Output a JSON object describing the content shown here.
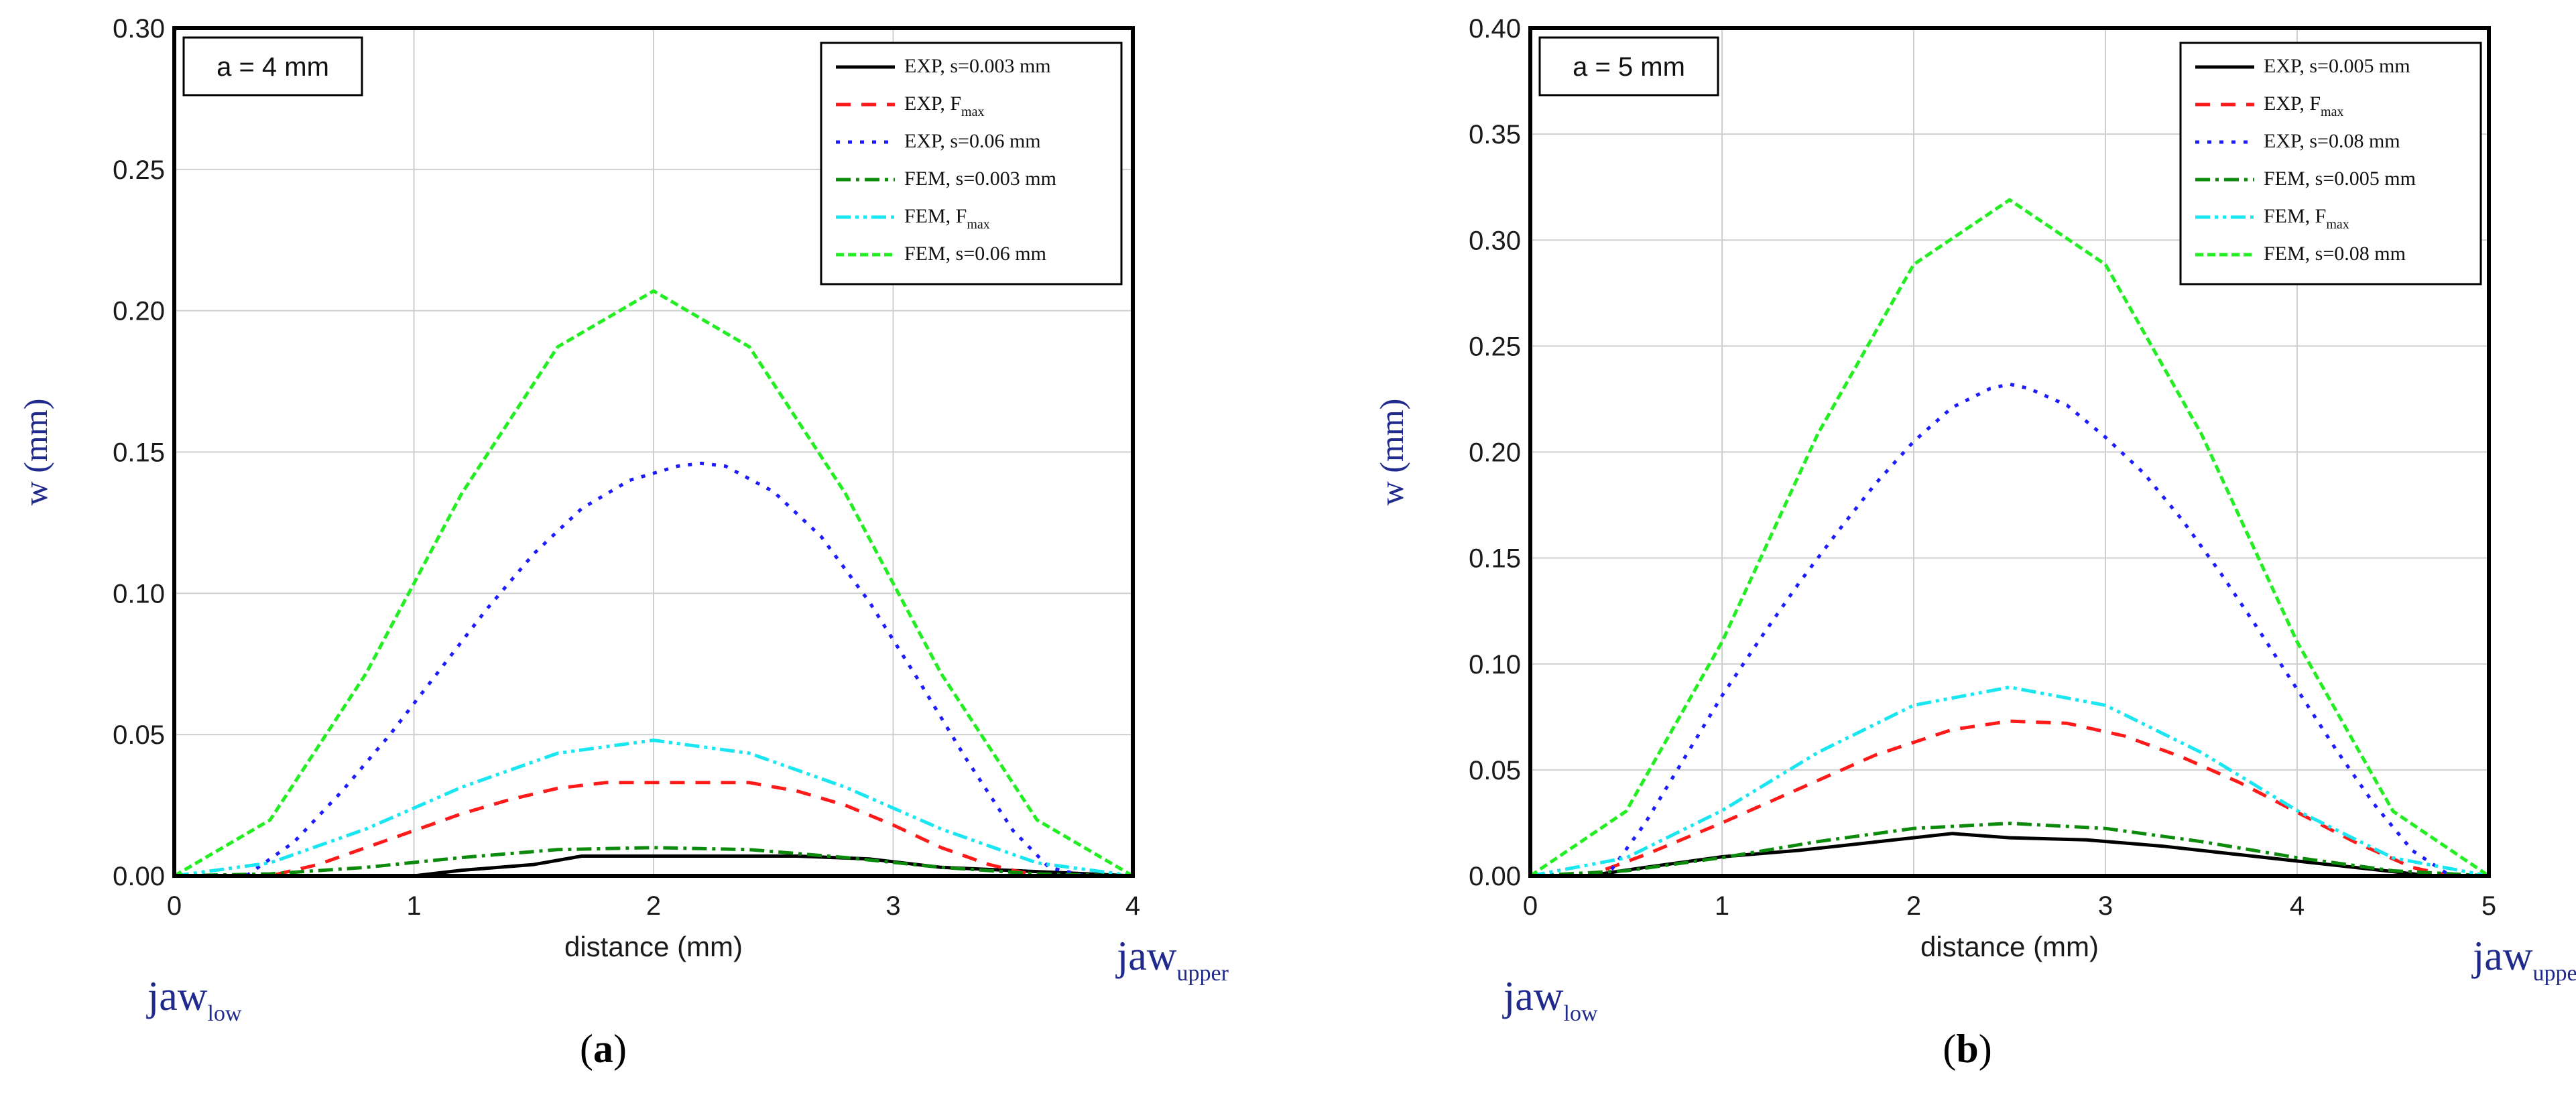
{
  "figure": {
    "jaw_low": {
      "main": "jaw",
      "sub": "low"
    },
    "jaw_upper": {
      "main": "jaw",
      "sub": "upper"
    }
  },
  "chart_data": [
    {
      "type": "line",
      "panel_label": "a",
      "annotation": "a = 4 mm",
      "xlabel": "distance (mm)",
      "ylabel": "w (mm)",
      "xlim": [
        0,
        4
      ],
      "ylim": [
        0,
        0.3
      ],
      "xticks": [
        "0",
        "1",
        "2",
        "3",
        "4"
      ],
      "yticks": [
        "0.00",
        "0.05",
        "0.10",
        "0.15",
        "0.20",
        "0.25",
        "0.30"
      ],
      "grid": true,
      "legend_position": "top-right",
      "series": [
        {
          "name": "EXP, s=0.003 mm",
          "label_main": "EXP, s=0.003 mm",
          "label_sub": "",
          "color": "#000000",
          "dash": "solid",
          "x": [
            0,
            1,
            1.2,
            1.5,
            1.7,
            2,
            2.3,
            2.6,
            2.9,
            3.2,
            4
          ],
          "y": [
            0,
            0,
            0.002,
            0.004,
            0.007,
            0.007,
            0.007,
            0.007,
            0.006,
            0.003,
            0
          ]
        },
        {
          "name": "EXP, Fmax",
          "label_main": "EXP, F",
          "label_sub": "max",
          "color": "#ff1a1a",
          "dash": "dashed",
          "x": [
            0,
            0.4,
            0.6,
            0.8,
            1,
            1.2,
            1.4,
            1.6,
            1.8,
            2,
            2.2,
            2.4,
            2.6,
            2.8,
            3,
            3.2,
            3.4,
            3.6,
            4
          ],
          "y": [
            0,
            0,
            0.004,
            0.01,
            0.016,
            0.022,
            0.027,
            0.031,
            0.033,
            0.033,
            0.033,
            0.033,
            0.03,
            0.025,
            0.018,
            0.01,
            0.004,
            0,
            0
          ]
        },
        {
          "name": "EXP, s=0.06 mm",
          "label_main": "EXP, s=0.06 mm",
          "label_sub": "",
          "color": "#1c1cff",
          "dash": "dotted",
          "x": [
            0,
            0.3,
            0.5,
            0.7,
            0.9,
            1.1,
            1.3,
            1.5,
            1.7,
            1.9,
            2.1,
            2.2,
            2.3,
            2.5,
            2.7,
            2.9,
            3.1,
            3.3,
            3.5,
            3.65,
            3.8,
            4
          ],
          "y": [
            0,
            0,
            0.012,
            0.03,
            0.05,
            0.072,
            0.094,
            0.114,
            0.13,
            0.14,
            0.145,
            0.146,
            0.145,
            0.136,
            0.12,
            0.097,
            0.07,
            0.042,
            0.016,
            0.003,
            0,
            0
          ]
        },
        {
          "name": "FEM, s=0.003 mm",
          "label_main": "FEM, s=0.003 mm",
          "label_sub": "",
          "color": "#0c8a0c",
          "dash": "dashdot",
          "x": [
            0,
            0.4,
            0.8,
            1.2,
            1.6,
            2,
            2.4,
            2.8,
            3.2,
            3.6,
            4
          ],
          "y": [
            0,
            0.0007,
            0.003,
            0.0065,
            0.0093,
            0.01,
            0.0093,
            0.0065,
            0.003,
            0.0007,
            0
          ]
        },
        {
          "name": "FEM, Fmax",
          "label_main": "FEM, F",
          "label_sub": "max",
          "color": "#19e6f0",
          "dash": "dashdotdot",
          "x": [
            0,
            0.4,
            0.8,
            1.2,
            1.6,
            2,
            2.4,
            2.8,
            3.2,
            3.6,
            4
          ],
          "y": [
            0,
            0.0046,
            0.0166,
            0.0314,
            0.0434,
            0.048,
            0.0434,
            0.0314,
            0.0166,
            0.0046,
            0
          ]
        },
        {
          "name": "FEM, s=0.06 mm",
          "label_main": "FEM, s=0.06 mm",
          "label_sub": "",
          "color": "#22ee22",
          "dash": "finedash",
          "x": [
            0,
            0.4,
            0.8,
            1.2,
            1.6,
            2,
            2.4,
            2.8,
            3.2,
            3.6,
            4
          ],
          "y": [
            0,
            0.0198,
            0.0716,
            0.1354,
            0.1872,
            0.207,
            0.1872,
            0.1354,
            0.0716,
            0.0198,
            0
          ]
        }
      ]
    },
    {
      "type": "line",
      "panel_label": "b",
      "annotation": "a = 5 mm",
      "xlabel": "distance (mm)",
      "ylabel": "w (mm)",
      "xlim": [
        0,
        5
      ],
      "ylim": [
        0,
        0.4
      ],
      "xticks": [
        "0",
        "1",
        "2",
        "3",
        "4",
        "5"
      ],
      "yticks": [
        "0.00",
        "0.05",
        "0.10",
        "0.15",
        "0.20",
        "0.25",
        "0.30",
        "0.35",
        "0.40"
      ],
      "grid": true,
      "legend_position": "top-right",
      "series": [
        {
          "name": "EXP, s=0.005 mm",
          "label_main": "EXP, s=0.005 mm",
          "label_sub": "",
          "color": "#000000",
          "dash": "solid",
          "x": [
            0,
            0.3,
            0.6,
            1,
            1.4,
            1.8,
            2.2,
            2.5,
            2.9,
            3.3,
            3.7,
            4.1,
            4.5,
            4.7,
            5
          ],
          "y": [
            0,
            0,
            0.004,
            0.009,
            0.012,
            0.016,
            0.02,
            0.018,
            0.017,
            0.014,
            0.01,
            0.006,
            0.002,
            0,
            0
          ]
        },
        {
          "name": "EXP, Fmax",
          "label_main": "EXP, F",
          "label_sub": "max",
          "color": "#ff1a1a",
          "dash": "dashed",
          "x": [
            0,
            0.3,
            0.6,
            1,
            1.4,
            1.8,
            2.2,
            2.5,
            2.8,
            3.1,
            3.4,
            3.7,
            4,
            4.3,
            4.6,
            4.8,
            5
          ],
          "y": [
            0,
            0,
            0.01,
            0.025,
            0.041,
            0.057,
            0.069,
            0.073,
            0.072,
            0.066,
            0.056,
            0.044,
            0.03,
            0.016,
            0.004,
            0,
            0
          ]
        },
        {
          "name": "EXP, s=0.08 mm",
          "label_main": "EXP, s=0.08 mm",
          "label_sub": "",
          "color": "#1c1cff",
          "dash": "dotted",
          "x": [
            0,
            0.4,
            0.6,
            0.8,
            1,
            1.2,
            1.4,
            1.6,
            1.8,
            2,
            2.2,
            2.4,
            2.5,
            2.6,
            2.8,
            3,
            3.2,
            3.4,
            3.6,
            3.8,
            4,
            4.2,
            4.4,
            4.6,
            4.8,
            5
          ],
          "y": [
            0,
            0,
            0.025,
            0.055,
            0.085,
            0.112,
            0.138,
            0.162,
            0.185,
            0.205,
            0.221,
            0.23,
            0.232,
            0.23,
            0.222,
            0.207,
            0.19,
            0.168,
            0.143,
            0.116,
            0.088,
            0.06,
            0.034,
            0.012,
            0,
            0
          ]
        },
        {
          "name": "FEM, s=0.005 mm",
          "label_main": "FEM, s=0.005 mm",
          "label_sub": "",
          "color": "#0c8a0c",
          "dash": "dashdot",
          "x": [
            0,
            0.5,
            1,
            1.5,
            2,
            2.5,
            3,
            3.5,
            4,
            4.5,
            5
          ],
          "y": [
            0,
            0.0024,
            0.0086,
            0.0162,
            0.0224,
            0.0248,
            0.0224,
            0.0162,
            0.0086,
            0.0024,
            0
          ]
        },
        {
          "name": "FEM, Fmax",
          "label_main": "FEM, F",
          "label_sub": "max",
          "color": "#19e6f0",
          "dash": "dashdotdot",
          "x": [
            0,
            0.5,
            1,
            1.5,
            2,
            2.5,
            3,
            3.5,
            4,
            4.5,
            5
          ],
          "y": [
            0,
            0.0085,
            0.0308,
            0.0582,
            0.0805,
            0.089,
            0.0805,
            0.0582,
            0.0308,
            0.0085,
            0
          ]
        },
        {
          "name": "FEM, s=0.08 mm",
          "label_main": "FEM, s=0.08 mm",
          "label_sub": "",
          "color": "#22ee22",
          "dash": "finedash",
          "x": [
            0,
            0.5,
            1,
            1.5,
            2,
            2.5,
            3,
            3.5,
            4,
            4.5,
            5
          ],
          "y": [
            0,
            0.0305,
            0.1104,
            0.2086,
            0.2885,
            0.319,
            0.2885,
            0.2086,
            0.1104,
            0.0305,
            0
          ]
        }
      ]
    }
  ]
}
